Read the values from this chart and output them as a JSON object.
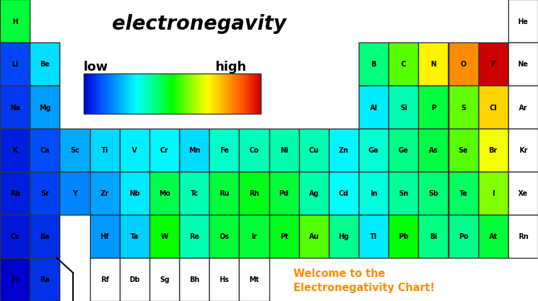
{
  "title": "electronegavity",
  "title_fontsize": 20,
  "welcome_text": "Welcome to the\nElectronegativity Chart!",
  "welcome_color": "#FF8C00",
  "low_label": "low",
  "high_label": "high",
  "background": "#ffffff",
  "elements": [
    {
      "symbol": "H",
      "row": 1,
      "col": 1,
      "en": 2.2
    },
    {
      "symbol": "He",
      "row": 1,
      "col": 18,
      "en": null
    },
    {
      "symbol": "Li",
      "row": 2,
      "col": 1,
      "en": 0.98
    },
    {
      "symbol": "Be",
      "row": 2,
      "col": 2,
      "en": 1.57
    },
    {
      "symbol": "B",
      "row": 2,
      "col": 13,
      "en": 2.04
    },
    {
      "symbol": "C",
      "row": 2,
      "col": 14,
      "en": 2.55
    },
    {
      "symbol": "N",
      "row": 2,
      "col": 15,
      "en": 3.04
    },
    {
      "symbol": "O",
      "row": 2,
      "col": 16,
      "en": 3.44
    },
    {
      "symbol": "F",
      "row": 2,
      "col": 17,
      "en": 3.98
    },
    {
      "symbol": "Ne",
      "row": 2,
      "col": 18,
      "en": null
    },
    {
      "symbol": "Na",
      "row": 3,
      "col": 1,
      "en": 0.93
    },
    {
      "symbol": "Mg",
      "row": 3,
      "col": 2,
      "en": 1.31
    },
    {
      "symbol": "Al",
      "row": 3,
      "col": 13,
      "en": 1.61
    },
    {
      "symbol": "Si",
      "row": 3,
      "col": 14,
      "en": 1.9
    },
    {
      "symbol": "P",
      "row": 3,
      "col": 15,
      "en": 2.19
    },
    {
      "symbol": "S",
      "row": 3,
      "col": 16,
      "en": 2.58
    },
    {
      "symbol": "Cl",
      "row": 3,
      "col": 17,
      "en": 3.16
    },
    {
      "symbol": "Ar",
      "row": 3,
      "col": 18,
      "en": null
    },
    {
      "symbol": "K",
      "row": 4,
      "col": 1,
      "en": 0.82
    },
    {
      "symbol": "Ca",
      "row": 4,
      "col": 2,
      "en": 1.0
    },
    {
      "symbol": "Sc",
      "row": 4,
      "col": 3,
      "en": 1.36
    },
    {
      "symbol": "Ti",
      "row": 4,
      "col": 4,
      "en": 1.54
    },
    {
      "symbol": "V",
      "row": 4,
      "col": 5,
      "en": 1.63
    },
    {
      "symbol": "Cr",
      "row": 4,
      "col": 6,
      "en": 1.66
    },
    {
      "symbol": "Mn",
      "row": 4,
      "col": 7,
      "en": 1.55
    },
    {
      "symbol": "Fe",
      "row": 4,
      "col": 8,
      "en": 1.83
    },
    {
      "symbol": "Co",
      "row": 4,
      "col": 9,
      "en": 1.88
    },
    {
      "symbol": "Ni",
      "row": 4,
      "col": 10,
      "en": 1.91
    },
    {
      "symbol": "Cu",
      "row": 4,
      "col": 11,
      "en": 1.9
    },
    {
      "symbol": "Zn",
      "row": 4,
      "col": 12,
      "en": 1.65
    },
    {
      "symbol": "Ga",
      "row": 4,
      "col": 13,
      "en": 1.81
    },
    {
      "symbol": "Ge",
      "row": 4,
      "col": 14,
      "en": 2.01
    },
    {
      "symbol": "As",
      "row": 4,
      "col": 15,
      "en": 2.18
    },
    {
      "symbol": "Se",
      "row": 4,
      "col": 16,
      "en": 2.55
    },
    {
      "symbol": "Br",
      "row": 4,
      "col": 17,
      "en": 2.96
    },
    {
      "symbol": "Kr",
      "row": 4,
      "col": 18,
      "en": null
    },
    {
      "symbol": "Rb",
      "row": 5,
      "col": 1,
      "en": 0.82
    },
    {
      "symbol": "Sr",
      "row": 5,
      "col": 2,
      "en": 0.95
    },
    {
      "symbol": "Y",
      "row": 5,
      "col": 3,
      "en": 1.22
    },
    {
      "symbol": "Zr",
      "row": 5,
      "col": 4,
      "en": 1.33
    },
    {
      "symbol": "Nb",
      "row": 5,
      "col": 5,
      "en": 1.6
    },
    {
      "symbol": "Mo",
      "row": 5,
      "col": 6,
      "en": 2.16
    },
    {
      "symbol": "Tc",
      "row": 5,
      "col": 7,
      "en": 1.9
    },
    {
      "symbol": "Ru",
      "row": 5,
      "col": 8,
      "en": 2.2
    },
    {
      "symbol": "Rh",
      "row": 5,
      "col": 9,
      "en": 2.28
    },
    {
      "symbol": "Pd",
      "row": 5,
      "col": 10,
      "en": 2.2
    },
    {
      "symbol": "Ag",
      "row": 5,
      "col": 11,
      "en": 1.93
    },
    {
      "symbol": "Cd",
      "row": 5,
      "col": 12,
      "en": 1.69
    },
    {
      "symbol": "In",
      "row": 5,
      "col": 13,
      "en": 1.78
    },
    {
      "symbol": "Sn",
      "row": 5,
      "col": 14,
      "en": 1.96
    },
    {
      "symbol": "Sb",
      "row": 5,
      "col": 15,
      "en": 2.05
    },
    {
      "symbol": "Te",
      "row": 5,
      "col": 16,
      "en": 2.1
    },
    {
      "symbol": "I",
      "row": 5,
      "col": 17,
      "en": 2.66
    },
    {
      "symbol": "Xe",
      "row": 5,
      "col": 18,
      "en": null
    },
    {
      "symbol": "Cs",
      "row": 6,
      "col": 1,
      "en": 0.79
    },
    {
      "symbol": "Ba",
      "row": 6,
      "col": 2,
      "en": 0.89
    },
    {
      "symbol": "Hf",
      "row": 6,
      "col": 4,
      "en": 1.3
    },
    {
      "symbol": "Ta",
      "row": 6,
      "col": 5,
      "en": 1.5
    },
    {
      "symbol": "W",
      "row": 6,
      "col": 6,
      "en": 2.36
    },
    {
      "symbol": "Re",
      "row": 6,
      "col": 7,
      "en": 1.9
    },
    {
      "symbol": "Os",
      "row": 6,
      "col": 8,
      "en": 2.2
    },
    {
      "symbol": "Ir",
      "row": 6,
      "col": 9,
      "en": 2.2
    },
    {
      "symbol": "Pt",
      "row": 6,
      "col": 10,
      "en": 2.28
    },
    {
      "symbol": "Au",
      "row": 6,
      "col": 11,
      "en": 2.54
    },
    {
      "symbol": "Hg",
      "row": 6,
      "col": 12,
      "en": 2.0
    },
    {
      "symbol": "Tl",
      "row": 6,
      "col": 13,
      "en": 1.62
    },
    {
      "symbol": "Pb",
      "row": 6,
      "col": 14,
      "en": 2.33
    },
    {
      "symbol": "Bi",
      "row": 6,
      "col": 15,
      "en": 2.02
    },
    {
      "symbol": "Po",
      "row": 6,
      "col": 16,
      "en": 2.0
    },
    {
      "symbol": "At",
      "row": 6,
      "col": 17,
      "en": 2.2
    },
    {
      "symbol": "Rn",
      "row": 6,
      "col": 18,
      "en": null
    },
    {
      "symbol": "Fr",
      "row": 7,
      "col": 1,
      "en": 0.7
    },
    {
      "symbol": "Ra",
      "row": 7,
      "col": 2,
      "en": 0.9
    },
    {
      "symbol": "Rf",
      "row": 7,
      "col": 4,
      "en": null
    },
    {
      "symbol": "Db",
      "row": 7,
      "col": 5,
      "en": null
    },
    {
      "symbol": "Sg",
      "row": 7,
      "col": 6,
      "en": null
    },
    {
      "symbol": "Bh",
      "row": 7,
      "col": 7,
      "en": null
    },
    {
      "symbol": "Hs",
      "row": 7,
      "col": 8,
      "en": null
    },
    {
      "symbol": "Mt",
      "row": 7,
      "col": 9,
      "en": null
    }
  ],
  "en_min": 0.7,
  "en_max": 3.98,
  "noble_gas_color": "#ffffff",
  "no_en_color": "#ffffff",
  "fig_width": 7.59,
  "fig_height": 4.27,
  "dpi": 100,
  "n_cols": 18,
  "n_rows": 7
}
